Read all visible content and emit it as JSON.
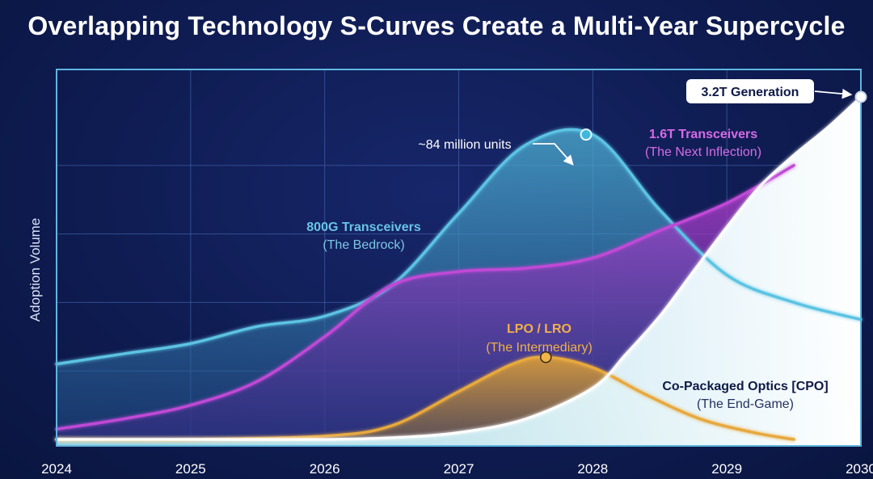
{
  "chart_data": {
    "type": "area",
    "title": "Overlapping Technology S-Curves Create a Multi-Year Supercycle",
    "xlabel": "",
    "ylabel": "Adoption Volume",
    "xlim": [
      2024,
      2030
    ],
    "ylim": [
      0,
      100
    ],
    "grid": true,
    "x_ticks": [
      "2024",
      "2025",
      "2026",
      "2027",
      "2028",
      "2029",
      "2030"
    ],
    "colors": {
      "s800g": "#5bc3e3",
      "s16t": "#c04ad6",
      "lpo": "#e7a83c",
      "cpo": "#ffffff",
      "grid": "#3f63a8",
      "frame": "#5fb6e0",
      "accent_dot": "#3fb8dc",
      "lpo_dot": "#f0b44a"
    },
    "series": [
      {
        "key": "s800g",
        "name": "800G Transceivers",
        "subtitle": "(The Bedrock)",
        "x": [
          2024,
          2024.5,
          2025,
          2025.5,
          2026,
          2026.5,
          2027,
          2027.5,
          2028,
          2028.5,
          2029,
          2029.5,
          2030
        ],
        "y": [
          22,
          25,
          28,
          33,
          36,
          45,
          66,
          86,
          89,
          67,
          48,
          40,
          35
        ]
      },
      {
        "key": "s16t",
        "name": "1.6T Transceivers",
        "subtitle": "(The Next Inflection)",
        "x": [
          2024,
          2024.5,
          2025,
          2025.5,
          2026,
          2026.5,
          2027,
          2027.5,
          2028,
          2028.5,
          2029,
          2029.5
        ],
        "y": [
          3,
          6,
          10,
          17,
          30,
          45,
          49,
          50,
          53,
          61,
          69,
          80
        ]
      },
      {
        "key": "lpo",
        "name": "LPO / LRO",
        "subtitle": "(The Intermediary)",
        "x": [
          2024,
          2025,
          2026,
          2026.5,
          2027,
          2027.4,
          2027.65,
          2028,
          2028.4,
          2028.8,
          2029.2,
          2029.5
        ],
        "y": [
          0,
          0,
          1,
          4,
          14,
          22,
          24,
          21,
          13,
          6,
          2,
          0
        ]
      },
      {
        "key": "cpo",
        "name": "Co-Packaged Optics [CPO]",
        "subtitle": "(The End-Game)",
        "x": [
          2024,
          2025,
          2026,
          2026.5,
          2027,
          2027.5,
          2028,
          2028.25,
          2028.5,
          2028.75,
          2029,
          2029.25,
          2029.5,
          2029.75,
          2030
        ],
        "y": [
          0,
          0,
          0,
          0.5,
          2,
          6,
          15,
          25,
          36,
          49,
          62,
          74,
          83,
          91,
          100
        ]
      }
    ],
    "annotations": [
      {
        "key": "peak800",
        "text": "~84 million units",
        "x": 2027.95,
        "y": 89
      },
      {
        "key": "gen32",
        "text": "3.2T Generation",
        "x": 2030,
        "y": 100
      },
      {
        "key": "lpoPeak",
        "text": "",
        "x": 2027.65,
        "y": 24
      }
    ]
  }
}
